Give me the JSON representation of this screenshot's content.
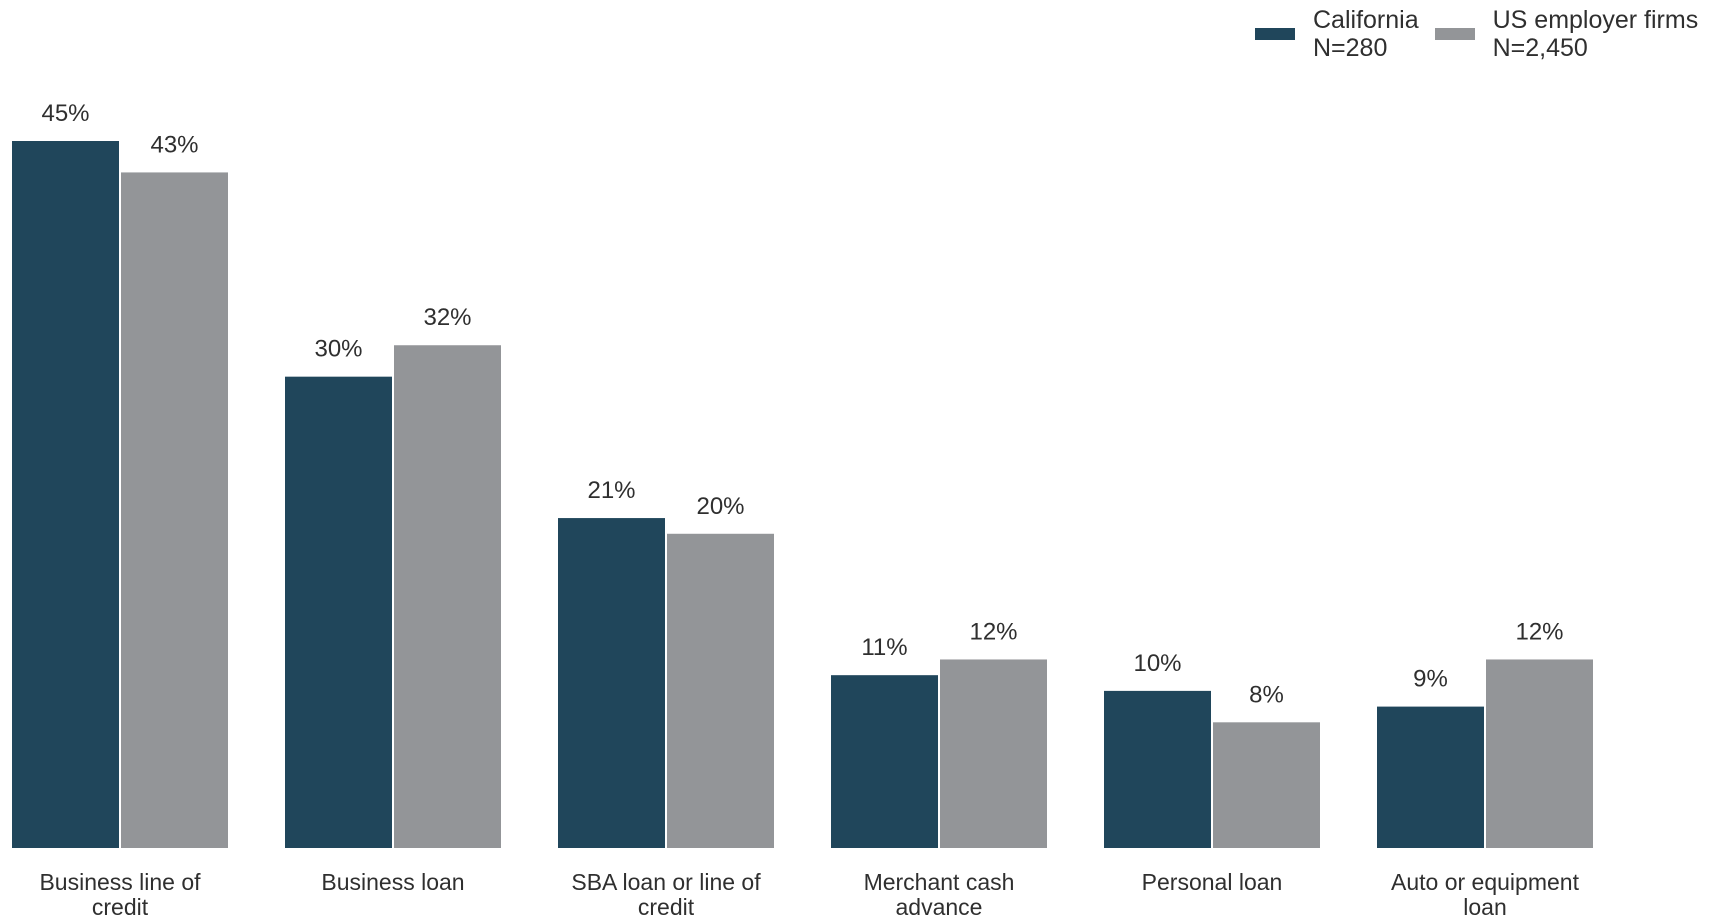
{
  "chart_data": {
    "type": "bar",
    "categories": [
      [
        "Business line of",
        "credit"
      ],
      [
        "Business loan"
      ],
      [
        "SBA loan or line of",
        "credit"
      ],
      [
        "Merchant cash",
        "advance"
      ],
      [
        "Personal loan"
      ],
      [
        "Auto or equipment",
        "loan"
      ]
    ],
    "series": [
      {
        "name": "California",
        "sample": "N=280",
        "color": "#20465b",
        "values": [
          45,
          30,
          21,
          11,
          10,
          9
        ],
        "labels": [
          "45%",
          "30%",
          "21%",
          "11%",
          "10%",
          "9%"
        ]
      },
      {
        "name": "US employer firms",
        "sample": "N=2,450",
        "color": "#939598",
        "values": [
          43,
          32,
          20,
          12,
          8,
          12
        ],
        "labels": [
          "43%",
          "32%",
          "20%",
          "12%",
          "8%",
          "12%"
        ]
      }
    ],
    "ylim": [
      0,
      45
    ],
    "grid": false,
    "legend_position": "top-right",
    "value_labels": true
  }
}
